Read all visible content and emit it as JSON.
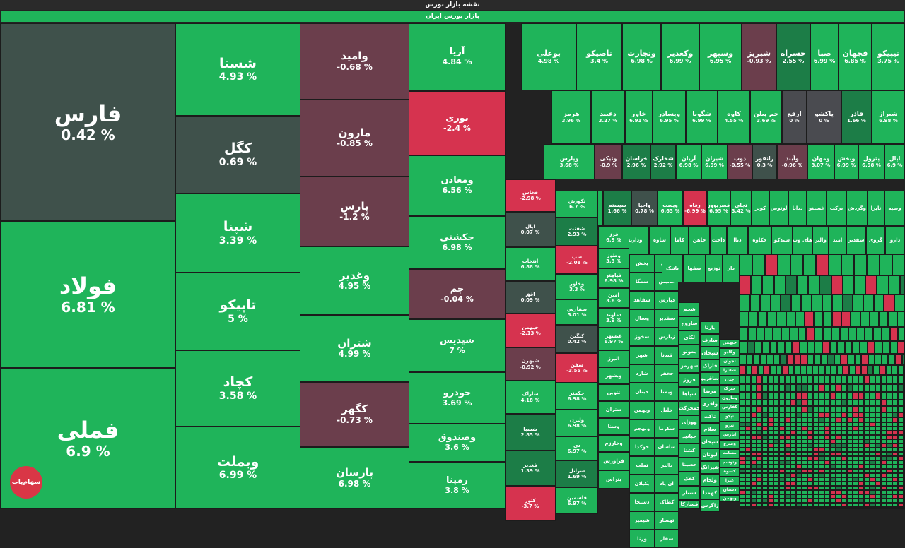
{
  "header": {
    "title": "نقشه بازار بورس",
    "subtitle": "بازار بورس ایران"
  },
  "logo_text": "سهام‌یاب",
  "colors": {
    "green": "#1fb45a",
    "red": "#d6334f",
    "dark_red": "#6b3e4c",
    "neutral": "#3f514b"
  },
  "big": [
    {
      "n": "فارس",
      "p": "0.42 %"
    },
    {
      "n": "فولاد",
      "p": "6.81 %"
    },
    {
      "n": "فملی",
      "p": "6.9 %"
    }
  ],
  "col2": [
    {
      "n": "شستا",
      "p": "4.93 %"
    },
    {
      "n": "کگل",
      "p": "0.69 %"
    },
    {
      "n": "شپنا",
      "p": "3.39 %"
    },
    {
      "n": "تاپیکو",
      "p": "5 %"
    },
    {
      "n": "کچاد",
      "p": "3.58 %"
    },
    {
      "n": "وبملت",
      "p": "6.99 %"
    }
  ],
  "col3": [
    {
      "n": "وامید",
      "p": "-0.68 %"
    },
    {
      "n": "مارون",
      "p": "-0.85 %"
    },
    {
      "n": "پارس",
      "p": "-1.2 %"
    },
    {
      "n": "وغدیر",
      "p": "4.95 %"
    },
    {
      "n": "شتران",
      "p": "4.99 %"
    },
    {
      "n": "کگهر",
      "p": "-0.73 %"
    },
    {
      "n": "پارسان",
      "p": "6.98 %"
    }
  ],
  "col4": [
    {
      "n": "آریا",
      "p": "4.84 %"
    },
    {
      "n": "نوری",
      "p": "-2.4 %"
    },
    {
      "n": "ومعادن",
      "p": "6.56 %"
    },
    {
      "n": "حکشتی",
      "p": "6.98 %"
    },
    {
      "n": "جم",
      "p": "-0.04 %"
    },
    {
      "n": "شپدیس",
      "p": "7 %"
    },
    {
      "n": "خودرو",
      "p": "3.69 %"
    },
    {
      "n": "وصندوق",
      "p": "3.6 %"
    },
    {
      "n": "رمپنا",
      "p": "3.8 %"
    }
  ],
  "row1": [
    {
      "n": "تیپیکو",
      "p": "3.75 %"
    },
    {
      "n": "فجهان",
      "p": "6.85 %"
    },
    {
      "n": "صبا",
      "p": "6.99 %"
    },
    {
      "n": "حسراه",
      "p": "2.55 %"
    },
    {
      "n": "شبریز",
      "p": "-0.93 %"
    },
    {
      "n": "وسپهر",
      "p": "6.95 %"
    },
    {
      "n": "وکغدیر",
      "p": "6.99 %"
    },
    {
      "n": "وتجارت",
      "p": "6.98 %"
    },
    {
      "n": "تاصیکو",
      "p": "3.4 %"
    },
    {
      "n": "بوعلی",
      "p": "4.98 %"
    }
  ],
  "row2": [
    {
      "n": "شیراز",
      "p": "6.98 %"
    },
    {
      "n": "فاذر",
      "p": "1.66 %"
    },
    {
      "n": "پاکشو",
      "p": "0 %"
    },
    {
      "n": "ارفع",
      "p": "0 %"
    },
    {
      "n": "جم پیلن",
      "p": "3.69 %"
    },
    {
      "n": "کاوه",
      "p": "4.55 %"
    },
    {
      "n": "شگویا",
      "p": "6.99 %"
    },
    {
      "n": "وپسادر",
      "p": "6.95 %"
    },
    {
      "n": "خاور",
      "p": "6.91 %"
    },
    {
      "n": "دعبید",
      "p": "3.27 %"
    },
    {
      "n": "هرمز",
      "p": "3.96 %"
    }
  ],
  "row3": [
    {
      "n": "اپال",
      "p": "6.9 %"
    },
    {
      "n": "پترول",
      "p": "6.98 %"
    },
    {
      "n": "وبخش",
      "p": "6.99 %"
    },
    {
      "n": "ومهان",
      "p": "3.07 %"
    },
    {
      "n": "وآیند",
      "p": "-0.96 %"
    },
    {
      "n": "رانفور",
      "p": "0.3 %"
    },
    {
      "n": "ذوب",
      "p": "-0.55 %"
    },
    {
      "n": "شیران",
      "p": "6.99 %"
    },
    {
      "n": "آریان",
      "p": "6.98 %"
    },
    {
      "n": "شخارک",
      "p": "2.92 %"
    },
    {
      "n": "خراسان",
      "p": "2.96 %"
    },
    {
      "n": "وتیکی",
      "p": "-0.9 %"
    },
    {
      "n": "وپارس",
      "p": "3.68 %"
    }
  ],
  "row4": [
    {
      "n": "وسپه"
    },
    {
      "n": "تاپرا"
    },
    {
      "n": "وگردش"
    },
    {
      "n": "برکت"
    },
    {
      "n": "غسینو"
    },
    {
      "n": "ددانا"
    },
    {
      "n": "لوتوس"
    },
    {
      "n": "کویر"
    },
    {
      "n": "تجلی",
      "p": "3.42 %"
    },
    {
      "n": "فسرپوور",
      "p": "6.95 %"
    },
    {
      "n": "رفاه",
      "p": "-6.99 %"
    },
    {
      "n": "وپست",
      "p": "6.63 %"
    },
    {
      "n": "واحیا",
      "p": "0.78 %"
    },
    {
      "n": "سیستم",
      "p": "1.66 %"
    },
    {
      "n": "سیتا",
      "p": "3.33 %"
    }
  ],
  "smallcol_a": [
    {
      "n": "فخاس",
      "p": "-2.98 %"
    },
    {
      "n": "اپال",
      "p": "0.07 %"
    },
    {
      "n": "انتخاب",
      "p": "6.88 %"
    },
    {
      "n": "افق",
      "p": "0.09 %"
    },
    {
      "n": "خبهمن",
      "p": "-2.13 %"
    },
    {
      "n": "شبهرن",
      "p": "-0.92 %"
    },
    {
      "n": "شاراک",
      "p": "4.18 %"
    },
    {
      "n": "شسپا",
      "p": "2.85 %"
    },
    {
      "n": "فغدیر",
      "p": "1.39 %"
    },
    {
      "n": "کتور",
      "p": "-3.7 %"
    }
  ],
  "smallcol_b": [
    {
      "n": "تکورش",
      "p": "6.7 %"
    },
    {
      "n": "شفنت",
      "p": "2.93 %"
    },
    {
      "n": "سپ",
      "p": "-2.08 %"
    },
    {
      "n": "وخاور",
      "p": "3.3 %"
    },
    {
      "n": "سفارس",
      "p": "5.01 %"
    },
    {
      "n": "کنگین",
      "p": "0.42 %"
    },
    {
      "n": "شفن",
      "p": "-3.55 %"
    },
    {
      "n": "حکمتر",
      "p": "6.98 %"
    },
    {
      "n": "ولیزن",
      "p": "6.98 %"
    },
    {
      "n": "دی",
      "p": "6.97 %"
    },
    {
      "n": "شرانل",
      "p": "1.69 %"
    },
    {
      "n": "قاسمین",
      "p": "6.97 %"
    }
  ],
  "smallcol_c": [
    {
      "n": "فرز",
      "p": "6.9 %"
    },
    {
      "n": "وطوز",
      "p": "3.3 %"
    },
    {
      "n": "فیاهتر",
      "p": "6.98 %"
    },
    {
      "n": "امین",
      "p": "3.6 %"
    },
    {
      "n": "دماوند",
      "p": "3.9 %"
    },
    {
      "n": "غبشهر",
      "p": "6.97 %"
    },
    {
      "n": "البرز"
    },
    {
      "n": "وبشهر"
    },
    {
      "n": "تنوین"
    },
    {
      "n": "ستران"
    },
    {
      "n": "وسنا"
    },
    {
      "n": "وخارزم"
    },
    {
      "n": "فراورس"
    },
    {
      "n": "بتراس"
    }
  ],
  "smallcol_d": [
    {
      "n": "پخش"
    },
    {
      "n": "سمگا"
    },
    {
      "n": "شفاهد"
    },
    {
      "n": "وسال"
    },
    {
      "n": "سخوز"
    },
    {
      "n": "شهر"
    },
    {
      "n": "شارد"
    },
    {
      "n": "خبنان"
    },
    {
      "n": "وبهمن"
    },
    {
      "n": "وبهجم"
    },
    {
      "n": "خوکدا"
    },
    {
      "n": "تملت"
    },
    {
      "n": "بکیلان"
    },
    {
      "n": "دسبحا"
    },
    {
      "n": "شیمپر"
    },
    {
      "n": "ورنا"
    }
  ],
  "smallcol_e": [
    {
      "n": "وانی"
    },
    {
      "n": "عالیس"
    },
    {
      "n": "دپارس"
    },
    {
      "n": "سفدیر"
    },
    {
      "n": "زیارس"
    },
    {
      "n": "فیدنا"
    },
    {
      "n": "حخفر"
    },
    {
      "n": "ویمنا"
    },
    {
      "n": "خلیل"
    },
    {
      "n": "سکرما"
    },
    {
      "n": "ساسان"
    },
    {
      "n": "دالبر"
    },
    {
      "n": "ان پاد"
    },
    {
      "n": "کطاک"
    },
    {
      "n": "تهسار"
    },
    {
      "n": "سفار"
    }
  ],
  "smallcol_f": [
    {
      "n": "شجم"
    },
    {
      "n": "ساروج"
    },
    {
      "n": "لکای"
    },
    {
      "n": "بموتو"
    },
    {
      "n": "سهرمز"
    },
    {
      "n": "فروژ"
    },
    {
      "n": "سپاها"
    },
    {
      "n": "خمحرکت"
    },
    {
      "n": "ووزای"
    },
    {
      "n": "حبانید"
    },
    {
      "n": "کشتا"
    },
    {
      "n": "حسینا"
    },
    {
      "n": "کفک"
    },
    {
      "n": "ستتار"
    },
    {
      "n": "فسارکا"
    }
  ],
  "smallcol_g": [
    {
      "n": "پارتا"
    },
    {
      "n": "سارف"
    },
    {
      "n": "سپحان"
    },
    {
      "n": "فاراک"
    },
    {
      "n": "ساقریو"
    },
    {
      "n": "مرضا"
    },
    {
      "n": "واقری"
    },
    {
      "n": "تاکت"
    },
    {
      "n": "سلام"
    },
    {
      "n": "سپحان"
    },
    {
      "n": "لیوتان"
    },
    {
      "n": "شیرانگ"
    },
    {
      "n": "ولجام"
    },
    {
      "n": "کهمدا"
    },
    {
      "n": "زاگرس"
    }
  ],
  "smallcol_h": [
    {
      "n": "خبهمن"
    },
    {
      "n": "وکادو"
    },
    {
      "n": "تجوان"
    },
    {
      "n": "شفارا"
    },
    {
      "n": "چدن"
    },
    {
      "n": "خترک"
    },
    {
      "n": "ومارون"
    },
    {
      "n": "کفارس"
    },
    {
      "n": "تپکو"
    },
    {
      "n": "نیرو"
    },
    {
      "n": "ایارس"
    },
    {
      "n": "ومبرع"
    },
    {
      "n": "مسامه"
    },
    {
      "n": "وتوسم"
    },
    {
      "n": "کسوه"
    },
    {
      "n": "غیرا"
    },
    {
      "n": "دستان"
    },
    {
      "n": "وبهمن"
    }
  ],
  "row5": [
    {
      "n": "دارو"
    },
    {
      "n": "گروی"
    },
    {
      "n": "شفدیر"
    },
    {
      "n": "امید"
    },
    {
      "n": "والبر"
    },
    {
      "n": "های وب"
    },
    {
      "n": "سیدکو"
    },
    {
      "n": "حکاوه"
    },
    {
      "n": "دتاا"
    },
    {
      "n": "داخت"
    },
    {
      "n": "خاهن"
    },
    {
      "n": "کاما"
    },
    {
      "n": "ساوه"
    },
    {
      "n": "وداریس"
    }
  ],
  "row6": [
    {
      "n": "دار"
    },
    {
      "n": "توزیع"
    },
    {
      "n": "صفها"
    },
    {
      "n": "باتیک"
    }
  ]
}
